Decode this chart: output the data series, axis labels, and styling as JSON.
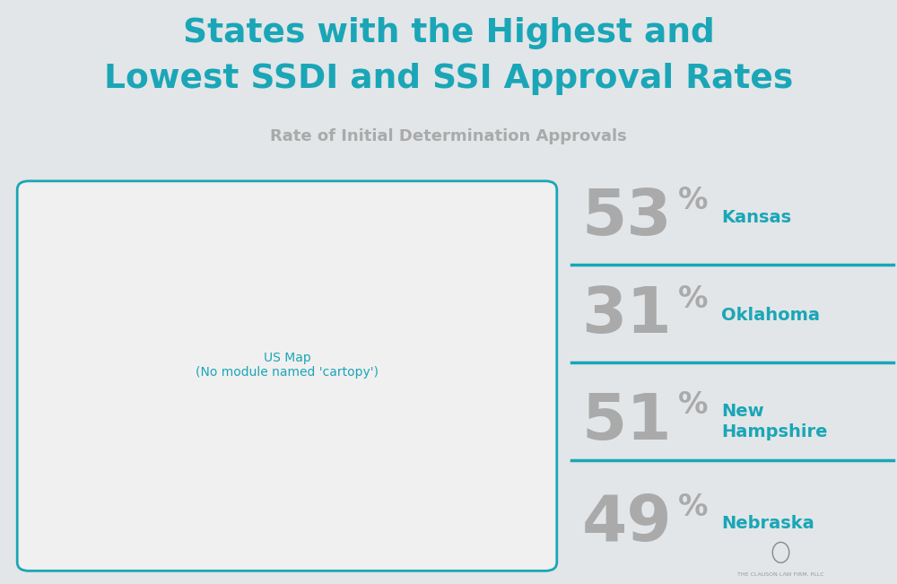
{
  "title_line1": "States with the Highest and",
  "title_line2": "Lowest SSDI and SSI Approval Rates",
  "subtitle": "Rate of Initial Determination Approvals",
  "title_color": "#1aa6b7",
  "subtitle_color": "#aaaaaa",
  "bg_color": "#e2e6e8",
  "map_face": "#ffffff",
  "outline_color": "#1aa6b7",
  "highlight_kansas": "#1580a0",
  "highlight_nebraska": "#1ab8cc",
  "highlight_oklahoma": "#22c8d8",
  "highlight_nh": "#1aa6b7",
  "stats": [
    {
      "pct": "53",
      "label": "Kansas",
      "two_line": false
    },
    {
      "pct": "31",
      "label": "Oklahoma",
      "two_line": false
    },
    {
      "pct": "51",
      "label": "New\nHampshire",
      "two_line": true
    },
    {
      "pct": "49",
      "label": "Nebraska",
      "two_line": false
    }
  ],
  "divider_color": "#1aa6b7",
  "pct_color": "#aaaaaa",
  "label_color": "#1aa6b7",
  "logo_text": "THE CLAUSON LAW FIRM, PLLC"
}
